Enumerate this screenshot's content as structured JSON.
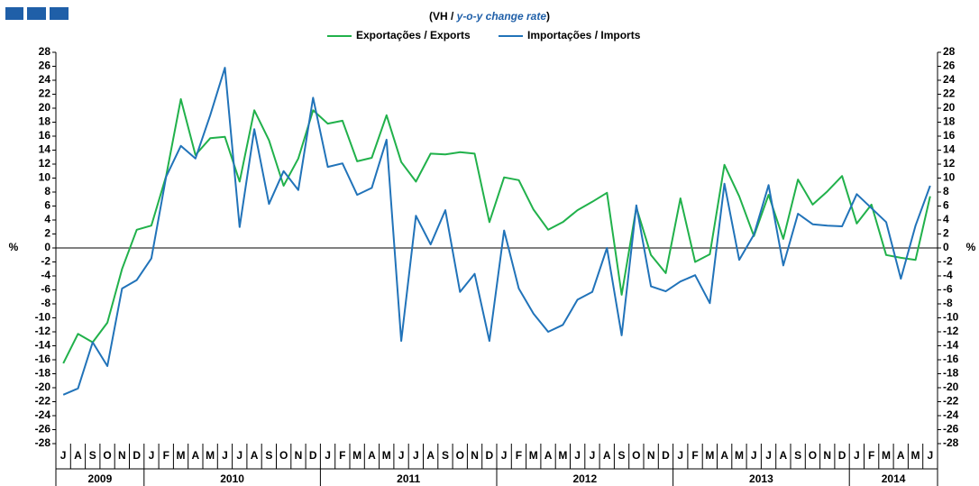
{
  "chart_data": {
    "type": "line",
    "subtitle_prefix": "(VH / ",
    "subtitle_emphasis": "y-o-y change rate",
    "subtitle_suffix": ")",
    "y_label": "%",
    "categories": [
      "J",
      "A",
      "S",
      "O",
      "N",
      "D",
      "J",
      "F",
      "M",
      "A",
      "M",
      "J",
      "J",
      "A",
      "S",
      "O",
      "N",
      "D",
      "J",
      "F",
      "M",
      "A",
      "M",
      "J",
      "J",
      "A",
      "S",
      "O",
      "N",
      "D",
      "J",
      "F",
      "M",
      "A",
      "M",
      "J",
      "J",
      "A",
      "S",
      "O",
      "N",
      "D",
      "J",
      "F",
      "M",
      "A",
      "M",
      "J",
      "J",
      "A",
      "S",
      "O",
      "N",
      "D",
      "J",
      "F",
      "M",
      "A",
      "M",
      "J"
    ],
    "years": [
      "2009",
      "2010",
      "2011",
      "2012",
      "2013",
      "2014"
    ],
    "series": [
      {
        "name": "Exportações / Exports",
        "color": "#21b14b",
        "values": [
          -16.5,
          -12.3,
          -13.5,
          -10.7,
          -3,
          2.6,
          3.2,
          10.3,
          21.3,
          13.3,
          15.7,
          15.9,
          9.5,
          19.7,
          15.4,
          8.9,
          12.8,
          19.7,
          17.8,
          18.2,
          12.4,
          12.9,
          19.0,
          12.3,
          9.5,
          13.5,
          13.4,
          13.7,
          13.5,
          3.7,
          10.1,
          9.7,
          5.5,
          2.6,
          3.7,
          5.4,
          6.6,
          7.9,
          -6.7,
          5.8,
          -1,
          -3.6,
          7.1,
          -2,
          -0.9,
          11.9,
          7.4,
          1.7,
          7.6,
          1.3,
          9.8,
          6.2,
          8.1,
          10.3,
          3.5,
          6.2,
          -1,
          -1.4,
          -1.7,
          7.4
        ]
      },
      {
        "name": "Importações / Imports",
        "color": "#2173b9",
        "values": [
          -21,
          -20.1,
          -13.5,
          -16.9,
          -5.8,
          -4.6,
          -1.5,
          10.2,
          14.6,
          12.8,
          19,
          25.8,
          3,
          17,
          6.3,
          11,
          8.3,
          21.5,
          11.6,
          12.1,
          7.6,
          8.6,
          15.5,
          -13.3,
          4.6,
          0.5,
          5.4,
          -6.3,
          -3.7,
          -13.3,
          2.5,
          -5.8,
          -9.4,
          -12,
          -11,
          -7.4,
          -6.3,
          0,
          -12.5,
          6.1,
          -5.5,
          -6.2,
          -4.8,
          -3.9,
          -7.9,
          9.2,
          -1.7,
          1.9,
          9,
          -2.5,
          4.9,
          3.4,
          3.2,
          3.1,
          7.7,
          5.7,
          3.7,
          -4.4,
          3.2,
          8.9
        ]
      }
    ],
    "ylim": [
      -28,
      28
    ],
    "yticks": [
      -28,
      -26,
      -24,
      -22,
      -20,
      -18,
      -16,
      -14,
      -12,
      -10,
      -8,
      -6,
      -4,
      -2,
      0,
      2,
      4,
      6,
      8,
      10,
      12,
      14,
      16,
      18,
      20,
      22,
      24,
      26,
      28
    ]
  }
}
